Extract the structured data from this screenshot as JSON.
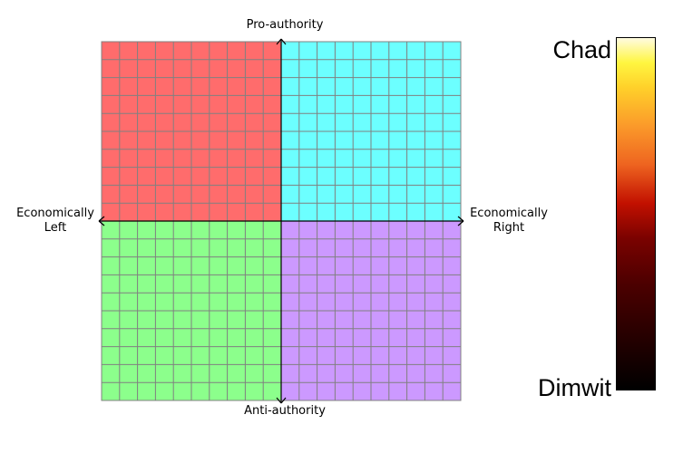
{
  "axes": {
    "top": "Pro-authority",
    "bottom": "Anti-authority",
    "left_line1": "Economically",
    "left_line2": "Left",
    "right_line1": "Economically",
    "right_line2": "Right"
  },
  "quadrants": {
    "top_left": {
      "color": "#ff6c6c"
    },
    "top_right": {
      "color": "#6cffff"
    },
    "bottom_left": {
      "color": "#8cff8c"
    },
    "bottom_right": {
      "color": "#cc99ff"
    }
  },
  "grid": {
    "divisions": 20,
    "line_color": "#808080",
    "axis_color": "#000000"
  },
  "scale": {
    "top_label": "Chad",
    "bottom_label": "Dimwit"
  }
}
